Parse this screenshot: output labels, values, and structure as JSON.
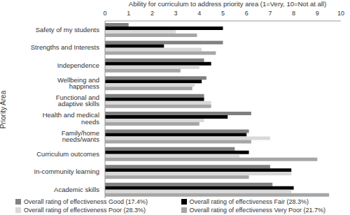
{
  "chart_data": {
    "type": "bar",
    "orientation": "horizontal",
    "x_label": "Ability for curriculum to address priority area (1=Very, 10=Not at all)",
    "y_label": "Priority Area",
    "categories": [
      "Safety of my students",
      "Strengths and Interests",
      "Independence",
      "Wellbeing and happiness",
      "Functional and adaptive skills",
      "Health and medical needs",
      "Family/home needs/wants",
      "Curriculum outcomes",
      "In-community learning",
      "Academic skills"
    ],
    "series": [
      {
        "name": "Overall rating of effectiveness Good (17.4%)",
        "color": "#808080",
        "values": [
          1.0,
          5.0,
          4.2,
          4.3,
          4.2,
          6.2,
          6.1,
          5.5,
          7.0,
          7.1
        ]
      },
      {
        "name": "Overall rating of effectiveness Fair (28.3%)",
        "color": "#000000",
        "values": [
          5.0,
          2.5,
          4.5,
          4.1,
          4.2,
          5.2,
          6.0,
          6.1,
          7.9,
          8.0
        ]
      },
      {
        "name": "Overall rating of effectiveness Poor (28.3%)",
        "color": "#d9d9d9",
        "values": [
          3.0,
          4.1,
          4.0,
          3.8,
          4.5,
          4.2,
          7.0,
          5.7,
          7.9,
          7.9
        ]
      },
      {
        "name": "Overall rating of effectiveness Very Poor (21.7%)",
        "color": "#a6a6a6",
        "values": [
          3.9,
          4.7,
          3.2,
          3.7,
          4.5,
          4.0,
          6.2,
          9.0,
          6.1,
          9.5
        ]
      }
    ],
    "xlim": [
      0,
      10
    ],
    "xticks": [
      0,
      1,
      2,
      3,
      4,
      5,
      6,
      7,
      8,
      9,
      10
    ],
    "grid": false,
    "legend": "bottom"
  }
}
